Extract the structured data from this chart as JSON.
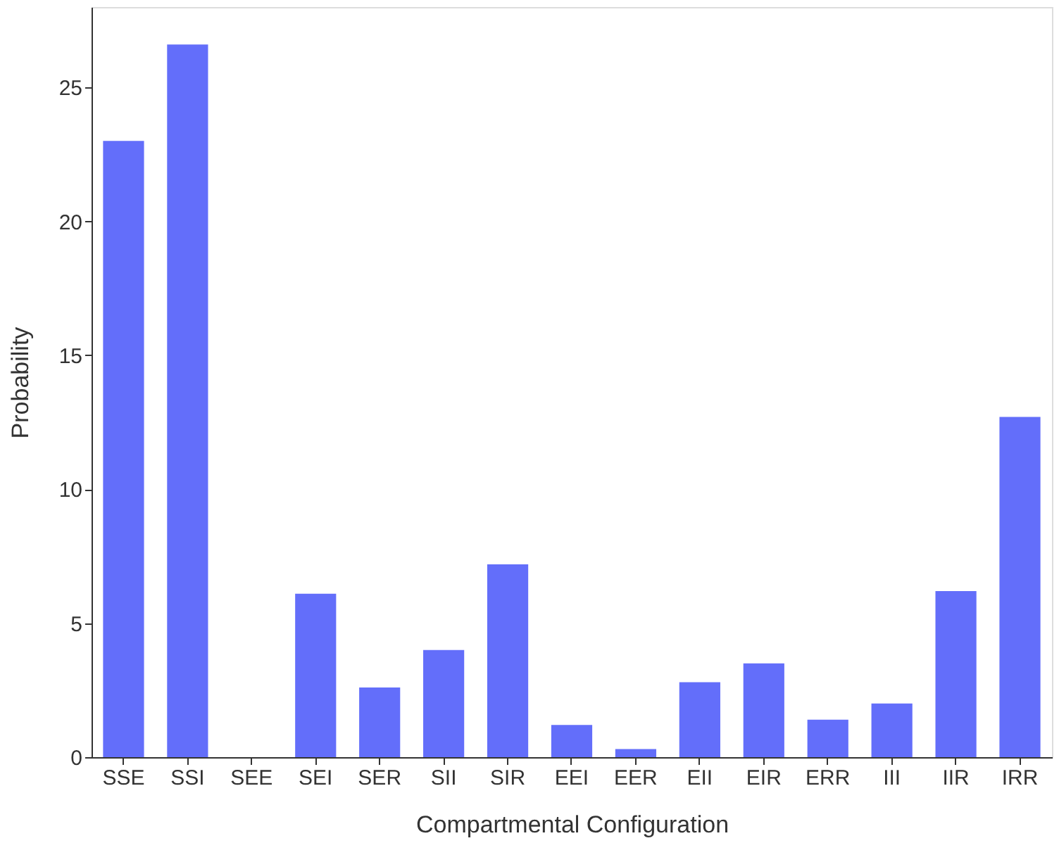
{
  "chart_data": {
    "type": "bar",
    "xlabel": "Compartmental Configuration",
    "ylabel": "Probability",
    "categories": [
      "SSE",
      "SSI",
      "SEE",
      "SEI",
      "SER",
      "SII",
      "SIR",
      "EEI",
      "EER",
      "EII",
      "EIR",
      "ERR",
      "III",
      "IIR",
      "IRR"
    ],
    "values": [
      23.0,
      26.6,
      0,
      6.1,
      2.6,
      4.0,
      7.2,
      1.2,
      0.3,
      2.8,
      3.5,
      1.4,
      2.0,
      6.2,
      12.7
    ],
    "color": "#636efa",
    "ylim": [
      0,
      28
    ],
    "yticks": [
      0,
      5,
      10,
      15,
      20,
      25
    ],
    "grid": false
  }
}
